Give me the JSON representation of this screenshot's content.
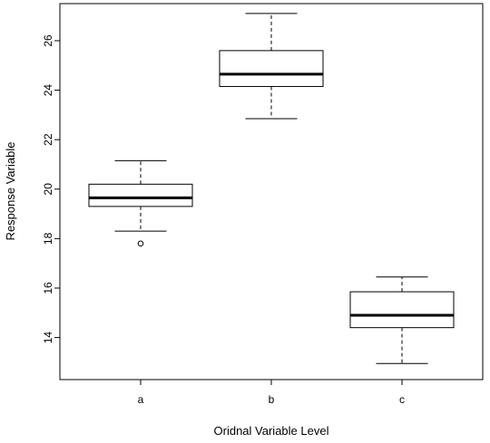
{
  "chart_data": {
    "type": "boxplot",
    "title": "",
    "xlabel": "Oridnal Variable Level",
    "ylabel": "Response Variable",
    "categories": [
      "a",
      "b",
      "c"
    ],
    "ylim": [
      12.3,
      27.5
    ],
    "yticks": [
      14,
      16,
      18,
      20,
      22,
      24,
      26
    ],
    "boxes": [
      {
        "category": "a",
        "whisker_low": 18.3,
        "q1": 19.3,
        "median": 19.65,
        "q3": 20.2,
        "whisker_high": 21.15,
        "outliers": [
          17.8
        ]
      },
      {
        "category": "b",
        "whisker_low": 22.85,
        "q1": 24.15,
        "median": 24.65,
        "q3": 25.6,
        "whisker_high": 27.1,
        "outliers": []
      },
      {
        "category": "c",
        "whisker_low": 12.95,
        "q1": 14.4,
        "median": 14.9,
        "q3": 15.85,
        "whisker_high": 16.45,
        "outliers": []
      }
    ],
    "grid": false,
    "legend": "none"
  }
}
